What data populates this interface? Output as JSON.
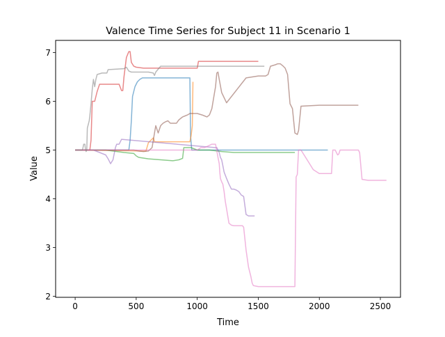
{
  "chart_data": {
    "type": "line",
    "title": "Valence Time Series for Subject 11 in Scenario 1",
    "xlabel": "Time",
    "ylabel": "Value",
    "xlim": [
      -160,
      2665
    ],
    "ylim": [
      1.98,
      7.25
    ],
    "xticks": [
      0,
      500,
      1000,
      1500,
      2000,
      2500
    ],
    "yticks": [
      2,
      3,
      4,
      5,
      6,
      7
    ],
    "grid": false,
    "legend": "none",
    "series": [
      {
        "color": "#1f77b4",
        "x": [
          0,
          440,
          450,
          460,
          470,
          490,
          510,
          530,
          550,
          940,
          945,
          955,
          2070
        ],
        "y": [
          5.0,
          5.0,
          5.2,
          5.6,
          6.1,
          6.3,
          6.4,
          6.45,
          6.48,
          6.48,
          5.3,
          5.0,
          5.0
        ]
      },
      {
        "color": "#ff7f0e",
        "x": [
          0,
          560,
          580,
          600,
          620,
          640,
          650,
          940,
          950,
          960,
          965
        ],
        "y": [
          5.0,
          4.98,
          4.98,
          5.15,
          5.2,
          5.25,
          5.17,
          5.17,
          5.3,
          5.5,
          6.4
        ]
      },
      {
        "color": "#2ca02c",
        "x": [
          0,
          250,
          400,
          480,
          500,
          520,
          600,
          700,
          800,
          850,
          880,
          890,
          950,
          1000,
          1100,
          1200,
          1300,
          1800
        ],
        "y": [
          5.0,
          5.0,
          4.95,
          4.93,
          4.88,
          4.85,
          4.82,
          4.8,
          4.78,
          4.8,
          4.83,
          5.05,
          5.05,
          5.0,
          5.0,
          4.97,
          4.95,
          4.95
        ]
      },
      {
        "color": "#d62728",
        "x": [
          0,
          120,
          130,
          140,
          160,
          180,
          200,
          360,
          380,
          390,
          400,
          420,
          440,
          450,
          460,
          480,
          500,
          560,
          1000,
          1010,
          1500
        ],
        "y": [
          5.0,
          5.0,
          5.2,
          6.0,
          6.0,
          6.2,
          6.35,
          6.35,
          6.22,
          6.22,
          6.5,
          6.9,
          7.02,
          7.02,
          6.8,
          6.72,
          6.7,
          6.68,
          6.68,
          6.82,
          6.82
        ]
      },
      {
        "color": "#9467bd",
        "x": [
          0,
          150,
          200,
          250,
          270,
          290,
          310,
          330,
          340,
          360,
          380,
          1150,
          1160,
          1170,
          1180,
          1190,
          1200,
          1210,
          1220,
          1240,
          1260,
          1280,
          1300,
          1320,
          1340,
          1360,
          1380,
          1400,
          1420,
          1440,
          1470
        ],
        "y": [
          5.0,
          5.0,
          4.95,
          4.9,
          4.82,
          4.72,
          4.8,
          5.05,
          5.12,
          5.12,
          5.22,
          5.05,
          5.05,
          5.0,
          4.95,
          4.85,
          4.8,
          4.68,
          4.55,
          4.42,
          4.3,
          4.2,
          4.2,
          4.18,
          4.15,
          4.08,
          4.05,
          3.68,
          3.65,
          3.65,
          3.65
        ]
      },
      {
        "color": "#8c564b",
        "x": [
          0,
          480,
          520,
          560,
          600,
          630,
          650,
          660,
          680,
          700,
          720,
          740,
          760,
          780,
          800,
          830,
          850,
          880,
          900,
          920,
          940,
          960,
          1000,
          1040,
          1060,
          1080,
          1100,
          1120,
          1140,
          1150,
          1160,
          1170,
          1180,
          1200,
          1240,
          1400,
          1500,
          1560,
          1580,
          1600,
          1640,
          1660,
          1680,
          1700,
          1720,
          1740,
          1760,
          1780,
          1800,
          1820,
          1830,
          1850,
          2000,
          2100,
          2320
        ],
        "y": [
          5.0,
          5.0,
          4.98,
          4.97,
          4.98,
          5.05,
          5.35,
          5.5,
          5.35,
          5.5,
          5.55,
          5.58,
          5.6,
          5.55,
          5.55,
          5.55,
          5.62,
          5.68,
          5.7,
          5.72,
          5.75,
          5.75,
          5.75,
          5.72,
          5.7,
          5.68,
          5.72,
          5.85,
          6.15,
          6.3,
          6.58,
          6.6,
          6.45,
          6.18,
          5.97,
          6.48,
          6.52,
          6.52,
          6.55,
          6.72,
          6.75,
          6.77,
          6.77,
          6.73,
          6.68,
          6.55,
          5.95,
          5.85,
          5.35,
          5.32,
          5.4,
          5.9,
          5.92,
          5.92,
          5.92
        ]
      },
      {
        "color": "#e377c2",
        "x": [
          0,
          1000,
          1030,
          1060,
          1120,
          1130,
          1150,
          1170,
          1180,
          1185,
          1190,
          1200,
          1210,
          1220,
          1230,
          1240,
          1260,
          1280,
          1300,
          1330,
          1370,
          1380,
          1400,
          1420,
          1440,
          1450,
          1460,
          1480,
          1500,
          1800,
          1810,
          1820,
          1830,
          1840,
          1850,
          1900,
          1950,
          2000,
          2050,
          2100,
          2110,
          2120,
          2130,
          2140,
          2150,
          2160,
          2170,
          2200,
          2300,
          2320,
          2330,
          2350,
          2400,
          2550
        ],
        "y": [
          5.0,
          5.0,
          5.05,
          5.05,
          5.12,
          5.12,
          5.12,
          4.85,
          4.72,
          4.55,
          4.42,
          4.35,
          4.3,
          4.15,
          3.95,
          3.8,
          3.5,
          3.46,
          3.45,
          3.45,
          3.45,
          3.42,
          2.95,
          2.6,
          2.4,
          2.27,
          2.22,
          2.21,
          2.2,
          2.2,
          4.45,
          4.5,
          5.0,
          5.0,
          5.0,
          4.8,
          4.6,
          4.52,
          4.52,
          4.52,
          5.0,
          5.0,
          5.0,
          4.95,
          4.9,
          4.92,
          5.0,
          5.0,
          5.0,
          5.0,
          4.95,
          4.4,
          4.38,
          4.38
        ]
      },
      {
        "color": "#7f7f7f",
        "x": [
          0,
          60,
          70,
          80,
          85,
          90,
          95,
          100,
          110,
          115,
          120,
          130,
          140,
          150,
          160,
          170,
          180,
          220,
          260,
          270,
          400,
          420,
          440,
          460,
          600,
          640,
          650,
          660,
          700,
          1550
        ],
        "y": [
          5.0,
          5.0,
          5.12,
          5.12,
          5.0,
          4.97,
          5.0,
          5.45,
          5.55,
          5.6,
          5.7,
          5.95,
          6.25,
          6.45,
          6.3,
          6.45,
          6.55,
          6.58,
          6.58,
          6.65,
          6.67,
          6.7,
          6.62,
          6.6,
          6.6,
          6.58,
          6.53,
          6.6,
          6.72,
          6.72
        ]
      }
    ]
  }
}
